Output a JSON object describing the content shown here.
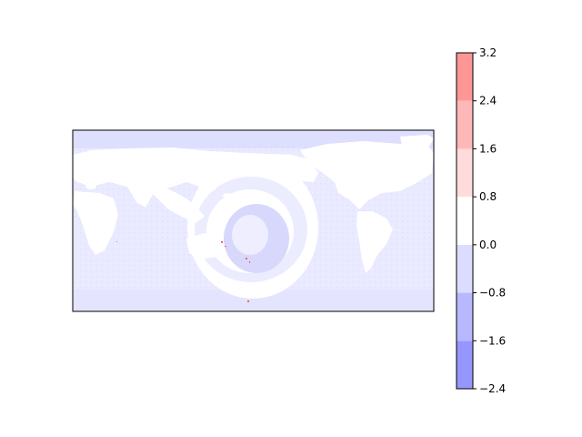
{
  "chart_data": {
    "type": "heatmap",
    "title": "",
    "xlabel": "",
    "ylabel": "",
    "map": {
      "projection": "equirectangular",
      "dominant_value_range": [
        -0.8,
        0.8
      ],
      "feature": "concentric ring anomaly centered in the South Pacific"
    },
    "colorbar": {
      "orientation": "vertical",
      "levels": [
        -2.4,
        -1.6,
        -0.8,
        0.0,
        0.8,
        1.6,
        2.4,
        3.2
      ],
      "tick_labels": [
        "−2.4",
        "−1.6",
        "−0.8",
        "0.0",
        "0.8",
        "1.6",
        "2.4",
        "3.2"
      ],
      "band_colors": [
        "#9696ff",
        "#b8b8ff",
        "#dcdcff",
        "#ffffff",
        "#ffdcdc",
        "#ffb8b8",
        "#ff9696"
      ]
    }
  },
  "colors": {
    "ocean_light_blue": "#e6e6ff",
    "ring_blue": "#d8d8fc",
    "land": "#ffffff",
    "speckle_red": "#ff6060"
  }
}
